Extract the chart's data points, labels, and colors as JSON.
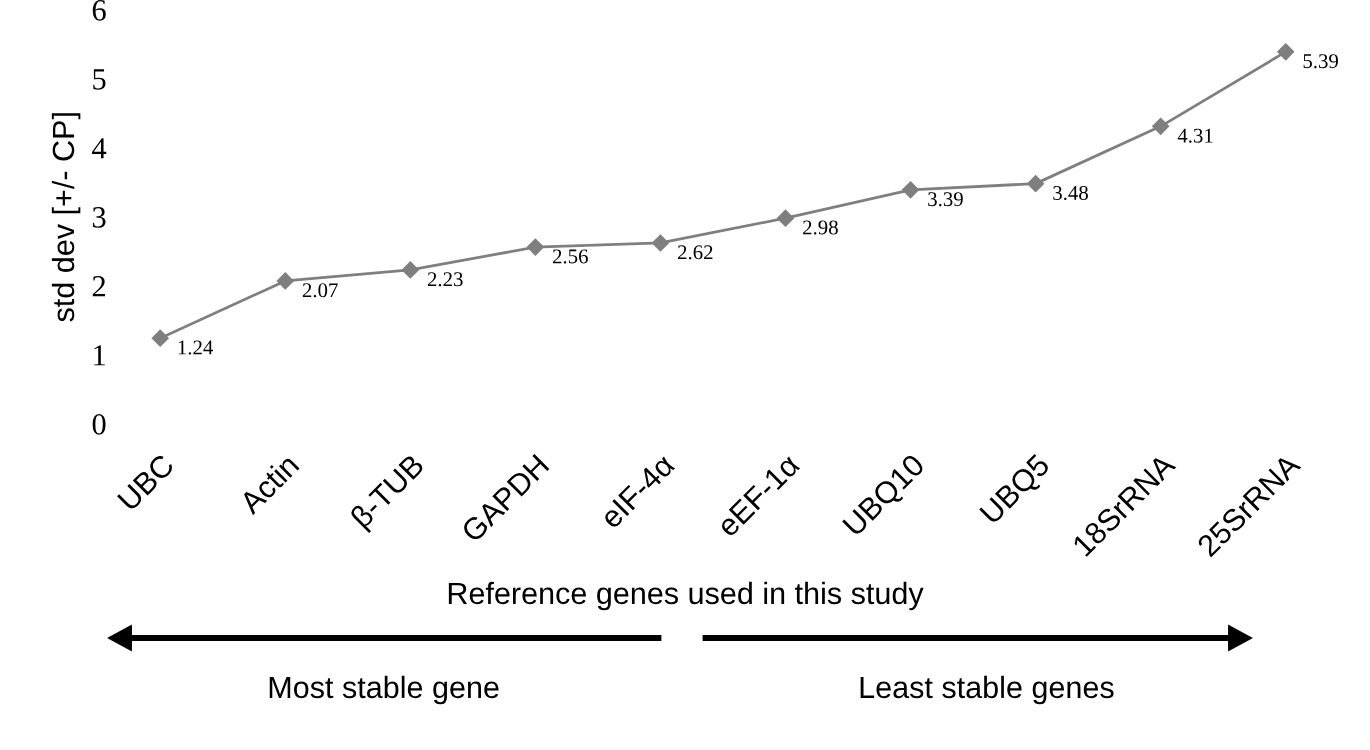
{
  "chart_data": {
    "type": "line",
    "ylabel": "std dev [+/- CP]",
    "xlabel": "Reference genes used in this study",
    "categories": [
      "UBC",
      "Actin",
      "β-TUB",
      "GAPDH",
      "eIF-4α",
      "eEF-1α",
      "UBQ10",
      "UBQ5",
      "18SrRNA",
      "25SrRNA"
    ],
    "series": [
      {
        "color": "#7f7f7f",
        "values": [
          1.24,
          2.07,
          2.23,
          2.56,
          2.62,
          2.98,
          3.39,
          3.48,
          4.31,
          5.39
        ]
      }
    ],
    "ylim": [
      0,
      6
    ],
    "yticks": [
      0,
      1,
      2,
      3,
      4,
      5,
      6
    ],
    "grid": false,
    "marker": "diamond",
    "line_style": "solid",
    "data_labels": true,
    "annotations": [
      "Most stable gene",
      "Least stable genes"
    ]
  }
}
